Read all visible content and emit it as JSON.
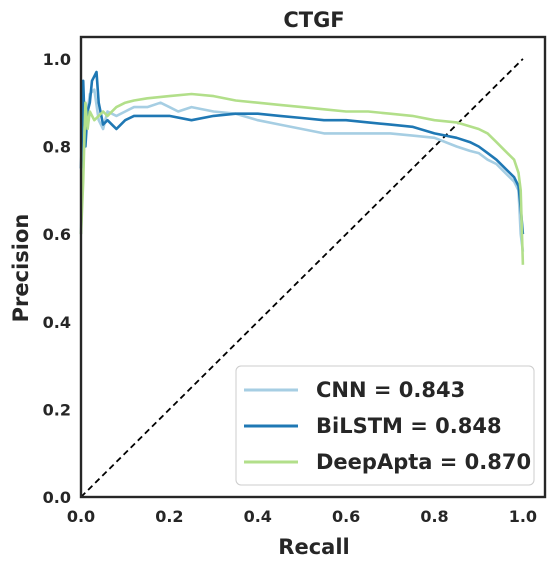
{
  "chart_data": {
    "type": "line",
    "title": "CTGF",
    "xlabel": "Recall",
    "ylabel": "Precision",
    "xlim": [
      0.0,
      1.05
    ],
    "ylim": [
      0.0,
      1.05
    ],
    "x_ticks": [
      "0.0",
      "0.2",
      "0.4",
      "0.6",
      "0.8",
      "1.0"
    ],
    "y_ticks": [
      "0.0",
      "0.2",
      "0.4",
      "0.6",
      "0.8",
      "1.0"
    ],
    "grid": false,
    "legend_position": "lower-right",
    "diagonal_reference": {
      "x": [
        0,
        1
      ],
      "y": [
        0,
        1
      ],
      "style": "dashed",
      "color": "#000000"
    },
    "series": [
      {
        "name": "CNN = 0.843",
        "color": "#a6cee3",
        "x": [
          0.0,
          0.005,
          0.01,
          0.015,
          0.02,
          0.03,
          0.04,
          0.05,
          0.06,
          0.08,
          0.1,
          0.12,
          0.15,
          0.18,
          0.2,
          0.22,
          0.25,
          0.3,
          0.35,
          0.4,
          0.45,
          0.5,
          0.55,
          0.6,
          0.65,
          0.7,
          0.75,
          0.8,
          0.85,
          0.88,
          0.9,
          0.92,
          0.94,
          0.96,
          0.98,
          0.99,
          0.995,
          1.0
        ],
        "y": [
          0.6,
          0.8,
          0.9,
          0.88,
          0.92,
          0.93,
          0.86,
          0.84,
          0.88,
          0.87,
          0.88,
          0.89,
          0.89,
          0.9,
          0.89,
          0.88,
          0.89,
          0.88,
          0.875,
          0.86,
          0.85,
          0.84,
          0.83,
          0.83,
          0.83,
          0.83,
          0.825,
          0.82,
          0.8,
          0.79,
          0.785,
          0.77,
          0.76,
          0.74,
          0.72,
          0.7,
          0.6,
          0.56
        ]
      },
      {
        "name": "BiLSTM = 0.848",
        "color": "#1f78b4",
        "x": [
          0.0,
          0.005,
          0.01,
          0.015,
          0.02,
          0.025,
          0.03,
          0.035,
          0.04,
          0.05,
          0.06,
          0.07,
          0.08,
          0.1,
          0.12,
          0.15,
          0.2,
          0.25,
          0.3,
          0.35,
          0.4,
          0.45,
          0.5,
          0.55,
          0.6,
          0.65,
          0.7,
          0.75,
          0.8,
          0.85,
          0.88,
          0.9,
          0.92,
          0.94,
          0.96,
          0.98,
          0.99,
          0.995,
          1.0
        ],
        "y": [
          0.75,
          0.95,
          0.8,
          0.88,
          0.9,
          0.95,
          0.96,
          0.97,
          0.9,
          0.85,
          0.86,
          0.85,
          0.84,
          0.86,
          0.87,
          0.87,
          0.87,
          0.86,
          0.87,
          0.875,
          0.875,
          0.87,
          0.865,
          0.86,
          0.86,
          0.855,
          0.85,
          0.845,
          0.83,
          0.82,
          0.81,
          0.8,
          0.785,
          0.77,
          0.75,
          0.73,
          0.71,
          0.66,
          0.6
        ]
      },
      {
        "name": "DeepApta = 0.870",
        "color": "#b2df8a",
        "x": [
          0.0,
          0.005,
          0.01,
          0.015,
          0.02,
          0.03,
          0.04,
          0.05,
          0.06,
          0.08,
          0.1,
          0.12,
          0.15,
          0.2,
          0.25,
          0.3,
          0.35,
          0.4,
          0.45,
          0.5,
          0.55,
          0.6,
          0.65,
          0.7,
          0.75,
          0.8,
          0.85,
          0.9,
          0.92,
          0.94,
          0.96,
          0.98,
          0.99,
          0.995,
          1.0
        ],
        "y": [
          0.6,
          0.72,
          0.9,
          0.84,
          0.88,
          0.86,
          0.87,
          0.88,
          0.87,
          0.89,
          0.9,
          0.905,
          0.91,
          0.915,
          0.92,
          0.915,
          0.905,
          0.9,
          0.895,
          0.89,
          0.885,
          0.88,
          0.88,
          0.875,
          0.87,
          0.86,
          0.855,
          0.84,
          0.83,
          0.81,
          0.79,
          0.77,
          0.74,
          0.7,
          0.53
        ]
      }
    ]
  }
}
